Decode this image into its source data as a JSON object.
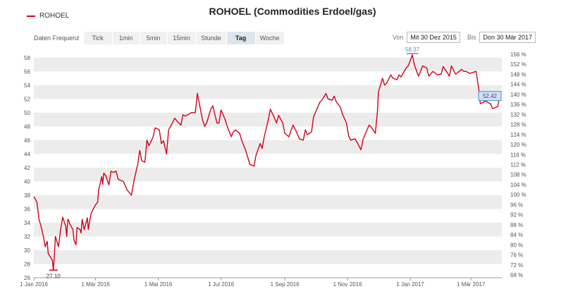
{
  "chart_data": {
    "type": "line",
    "title": "ROHOEL (Commodities Erdoel/gas)",
    "legend": "ROHOEL",
    "legend_position": "top-left",
    "grid": true,
    "ylim": [
      26,
      59
    ],
    "yticks": [
      26,
      28,
      30,
      32,
      34,
      36,
      38,
      40,
      42,
      44,
      46,
      48,
      50,
      52,
      54,
      56,
      58
    ],
    "right_axis": {
      "ticks": [
        "68 %",
        "72 %",
        "76 %",
        "80 %",
        "84 %",
        "88 %",
        "92 %",
        "96 %",
        "100 %",
        "104 %",
        "108 %",
        "112 %",
        "116 %",
        "120 %",
        "124 %",
        "128 %",
        "132 %",
        "136 %",
        "140 %",
        "144 %",
        "148 %",
        "152 %",
        "156 %"
      ],
      "range_pct": [
        68,
        156
      ]
    },
    "xlim": [
      "2016-01-01",
      "2017-03-31"
    ],
    "xticks": [
      {
        "date": "2016-01-01",
        "label": "1 Jan 2016"
      },
      {
        "date": "2016-03-01",
        "label": "1 Mär 2016"
      },
      {
        "date": "2016-05-01",
        "label": "1 Mai 2016"
      },
      {
        "date": "2016-07-01",
        "label": "1 Jul 2016"
      },
      {
        "date": "2016-09-01",
        "label": "1 Sep 2016"
      },
      {
        "date": "2016-11-01",
        "label": "1 Nov 2016"
      },
      {
        "date": "2017-01-01",
        "label": "1 Jan 2017"
      },
      {
        "date": "2017-03-01",
        "label": "1 Mär 2017"
      }
    ],
    "annotations": {
      "min": {
        "date": "2016-01-20",
        "value": 27.1,
        "label": "27.10"
      },
      "max": {
        "date": "2017-01-03",
        "value": 58.37,
        "label": "58.37"
      },
      "last": {
        "value": 52.42,
        "label": "52.42"
      }
    },
    "series": [
      {
        "name": "ROHOEL",
        "color": "#d0021b",
        "points": [
          [
            "2016-01-01",
            37.8
          ],
          [
            "2016-01-04",
            37.0
          ],
          [
            "2016-01-06",
            34.5
          ],
          [
            "2016-01-08",
            33.5
          ],
          [
            "2016-01-11",
            31.5
          ],
          [
            "2016-01-12",
            30.5
          ],
          [
            "2016-01-14",
            31.3
          ],
          [
            "2016-01-15",
            29.5
          ],
          [
            "2016-01-18",
            28.8
          ],
          [
            "2016-01-19",
            28.5
          ],
          [
            "2016-01-20",
            27.1
          ],
          [
            "2016-01-21",
            29.3
          ],
          [
            "2016-01-22",
            32.0
          ],
          [
            "2016-01-25",
            30.5
          ],
          [
            "2016-01-26",
            31.8
          ],
          [
            "2016-01-27",
            33.0
          ],
          [
            "2016-01-28",
            33.8
          ],
          [
            "2016-01-29",
            34.8
          ],
          [
            "2016-02-01",
            33.5
          ],
          [
            "2016-02-02",
            32.0
          ],
          [
            "2016-02-03",
            34.5
          ],
          [
            "2016-02-04",
            34.3
          ],
          [
            "2016-02-05",
            33.8
          ],
          [
            "2016-02-08",
            33.0
          ],
          [
            "2016-02-09",
            31.5
          ],
          [
            "2016-02-11",
            30.8
          ],
          [
            "2016-02-12",
            33.3
          ],
          [
            "2016-02-15",
            33.0
          ],
          [
            "2016-02-16",
            32.5
          ],
          [
            "2016-02-17",
            34.5
          ],
          [
            "2016-02-19",
            33.0
          ],
          [
            "2016-02-22",
            34.7
          ],
          [
            "2016-02-23",
            33.0
          ],
          [
            "2016-02-24",
            34.0
          ],
          [
            "2016-02-26",
            35.5
          ],
          [
            "2016-03-01",
            36.6
          ],
          [
            "2016-03-03",
            37.0
          ],
          [
            "2016-03-04",
            38.7
          ],
          [
            "2016-03-07",
            40.7
          ],
          [
            "2016-03-08",
            39.6
          ],
          [
            "2016-03-09",
            41.2
          ],
          [
            "2016-03-11",
            40.8
          ],
          [
            "2016-03-14",
            39.5
          ],
          [
            "2016-03-16",
            41.5
          ],
          [
            "2016-03-18",
            41.3
          ],
          [
            "2016-03-21",
            41.5
          ],
          [
            "2016-03-23",
            40.3
          ],
          [
            "2016-03-28",
            40.0
          ],
          [
            "2016-03-30",
            39.3
          ],
          [
            "2016-04-01",
            38.7
          ],
          [
            "2016-04-05",
            38.0
          ],
          [
            "2016-04-07",
            39.9
          ],
          [
            "2016-04-11",
            42.5
          ],
          [
            "2016-04-13",
            44.5
          ],
          [
            "2016-04-15",
            43.0
          ],
          [
            "2016-04-18",
            42.8
          ],
          [
            "2016-04-20",
            46.0
          ],
          [
            "2016-04-22",
            45.2
          ],
          [
            "2016-04-26",
            46.5
          ],
          [
            "2016-04-28",
            47.8
          ],
          [
            "2016-05-02",
            47.5
          ],
          [
            "2016-05-04",
            45.5
          ],
          [
            "2016-05-06",
            45.9
          ],
          [
            "2016-05-09",
            44.0
          ],
          [
            "2016-05-11",
            47.5
          ],
          [
            "2016-05-13",
            48.0
          ],
          [
            "2016-05-17",
            49.2
          ],
          [
            "2016-05-19",
            48.8
          ],
          [
            "2016-05-23",
            48.2
          ],
          [
            "2016-05-25",
            49.7
          ],
          [
            "2016-05-27",
            49.5
          ],
          [
            "2016-05-31",
            49.8
          ],
          [
            "2016-06-02",
            50.0
          ],
          [
            "2016-06-06",
            50.0
          ],
          [
            "2016-06-08",
            52.8
          ],
          [
            "2016-06-10",
            51.2
          ],
          [
            "2016-06-13",
            49.0
          ],
          [
            "2016-06-15",
            48.0
          ],
          [
            "2016-06-17",
            48.5
          ],
          [
            "2016-06-21",
            50.5
          ],
          [
            "2016-06-23",
            51.0
          ],
          [
            "2016-06-27",
            48.5
          ],
          [
            "2016-06-29",
            48.5
          ],
          [
            "2016-07-01",
            50.4
          ],
          [
            "2016-07-05",
            49.0
          ],
          [
            "2016-07-07",
            48.0
          ],
          [
            "2016-07-11",
            46.5
          ],
          [
            "2016-07-13",
            47.2
          ],
          [
            "2016-07-15",
            47.5
          ],
          [
            "2016-07-19",
            47.0
          ],
          [
            "2016-07-21",
            46.0
          ],
          [
            "2016-07-25",
            44.5
          ],
          [
            "2016-07-27",
            43.5
          ],
          [
            "2016-07-29",
            42.5
          ],
          [
            "2016-08-02",
            42.2
          ],
          [
            "2016-08-04",
            43.8
          ],
          [
            "2016-08-08",
            45.5
          ],
          [
            "2016-08-10",
            44.8
          ],
          [
            "2016-08-12",
            46.5
          ],
          [
            "2016-08-16",
            49.0
          ],
          [
            "2016-08-18",
            50.5
          ],
          [
            "2016-08-22",
            49.2
          ],
          [
            "2016-08-24",
            48.5
          ],
          [
            "2016-08-26",
            49.6
          ],
          [
            "2016-08-30",
            48.5
          ],
          [
            "2016-09-01",
            47.0
          ],
          [
            "2016-09-05",
            46.5
          ],
          [
            "2016-09-07",
            47.4
          ],
          [
            "2016-09-09",
            48.2
          ],
          [
            "2016-09-13",
            47.0
          ],
          [
            "2016-09-15",
            46.2
          ],
          [
            "2016-09-19",
            46.0
          ],
          [
            "2016-09-21",
            47.5
          ],
          [
            "2016-09-23",
            46.8
          ],
          [
            "2016-09-27",
            47.2
          ],
          [
            "2016-09-29",
            49.4
          ],
          [
            "2016-10-03",
            50.8
          ],
          [
            "2016-10-05",
            51.5
          ],
          [
            "2016-10-07",
            51.8
          ],
          [
            "2016-10-11",
            52.8
          ],
          [
            "2016-10-13",
            52.0
          ],
          [
            "2016-10-17",
            51.8
          ],
          [
            "2016-10-19",
            52.4
          ],
          [
            "2016-10-21",
            51.6
          ],
          [
            "2016-10-25",
            50.8
          ],
          [
            "2016-10-27",
            49.8
          ],
          [
            "2016-10-31",
            48.5
          ],
          [
            "2016-11-02",
            46.6
          ],
          [
            "2016-11-04",
            46.0
          ],
          [
            "2016-11-08",
            46.2
          ],
          [
            "2016-11-10",
            45.8
          ],
          [
            "2016-11-14",
            44.6
          ],
          [
            "2016-11-16",
            46.1
          ],
          [
            "2016-11-18",
            46.8
          ],
          [
            "2016-11-22",
            48.2
          ],
          [
            "2016-11-24",
            47.9
          ],
          [
            "2016-11-28",
            47.0
          ],
          [
            "2016-11-30",
            50.0
          ],
          [
            "2016-12-01",
            53.0
          ],
          [
            "2016-12-05",
            55.0
          ],
          [
            "2016-12-07",
            54.0
          ],
          [
            "2016-12-09",
            54.3
          ],
          [
            "2016-12-13",
            55.5
          ],
          [
            "2016-12-15",
            55.0
          ],
          [
            "2016-12-19",
            54.8
          ],
          [
            "2016-12-21",
            55.5
          ],
          [
            "2016-12-23",
            55.2
          ],
          [
            "2016-12-28",
            56.5
          ],
          [
            "2016-12-30",
            56.8
          ],
          [
            "2017-01-03",
            58.4
          ],
          [
            "2017-01-05",
            56.9
          ],
          [
            "2017-01-09",
            55.3
          ],
          [
            "2017-01-11",
            56.0
          ],
          [
            "2017-01-13",
            56.8
          ],
          [
            "2017-01-17",
            56.5
          ],
          [
            "2017-01-19",
            55.3
          ],
          [
            "2017-01-23",
            56.0
          ],
          [
            "2017-01-25",
            55.8
          ],
          [
            "2017-01-27",
            55.5
          ],
          [
            "2017-01-31",
            55.6
          ],
          [
            "2017-02-02",
            56.7
          ],
          [
            "2017-02-06",
            55.8
          ],
          [
            "2017-02-08",
            55.3
          ],
          [
            "2017-02-10",
            56.8
          ],
          [
            "2017-02-14",
            55.6
          ],
          [
            "2017-02-16",
            55.8
          ],
          [
            "2017-02-20",
            56.3
          ],
          [
            "2017-02-22",
            56.0
          ],
          [
            "2017-02-24",
            56.0
          ],
          [
            "2017-02-28",
            55.7
          ],
          [
            "2017-03-02",
            55.8
          ],
          [
            "2017-03-06",
            56.0
          ],
          [
            "2017-03-08",
            54.0
          ],
          [
            "2017-03-09",
            53.0
          ],
          [
            "2017-03-10",
            51.3
          ],
          [
            "2017-03-13",
            51.5
          ],
          [
            "2017-03-15",
            51.7
          ],
          [
            "2017-03-17",
            51.5
          ],
          [
            "2017-03-20",
            51.3
          ],
          [
            "2017-03-22",
            50.6
          ],
          [
            "2017-03-24",
            50.7
          ],
          [
            "2017-03-27",
            50.9
          ],
          [
            "2017-03-29",
            52.4
          ]
        ]
      }
    ]
  },
  "toolbar": {
    "label": "Daten Frequenz",
    "buttons": [
      "Tick",
      "1min",
      "5min",
      "15min",
      "Stunde",
      "Tag",
      "Woche"
    ],
    "active": "Tag"
  },
  "range": {
    "from_label": "Von",
    "from_value": "Mit 30 Dez 2015",
    "to_label": "Bis",
    "to_value": "Don 30 Mär 2017"
  },
  "colors": {
    "line": "#d0021b",
    "band": "#ececec",
    "marker": "#4a90c8",
    "last_box_bg": "#cde3f3",
    "last_box_border": "#4a90c8",
    "last_label": "#6a2c8c"
  }
}
